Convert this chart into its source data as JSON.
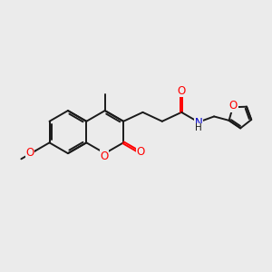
{
  "background_color": "#ebebeb",
  "bond_color": "#1a1a1a",
  "o_color": "#ff0000",
  "n_color": "#0000cc",
  "bond_width": 1.4,
  "figsize": [
    3.0,
    3.0
  ],
  "dpi": 100,
  "xlim": [
    0,
    10
  ],
  "ylim": [
    0,
    10
  ]
}
